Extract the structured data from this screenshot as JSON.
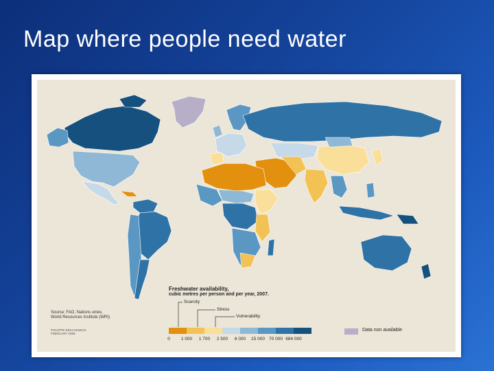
{
  "slide": {
    "title": "Map where people need water"
  },
  "legend": {
    "title": "Freshwater availability,",
    "subtitle": "cubic metres per person and per year, 2007.",
    "categories": {
      "scarcity": "Scarcity",
      "stress": "Stress",
      "vulnerability": "Vulnerability"
    },
    "ticks": [
      "0",
      "1 000",
      "1 700",
      "2 500",
      "6 000",
      "15 000",
      "70 000",
      "684 000"
    ],
    "colors": [
      "#e2900e",
      "#f2c255",
      "#fadf9a",
      "#c5d9e8",
      "#8fb8d6",
      "#5a97c2",
      "#2f72a6",
      "#15507e"
    ],
    "no_data": {
      "label": "Data non available",
      "color": "#b7aec8"
    }
  },
  "source": {
    "line1": "Source: FAO, Nations unies,",
    "line2": "World Resources Institute (WRI)."
  },
  "credit": {
    "line1": "PHILIPPE REKACEWICZ",
    "line2": "FEBRUARY 2006"
  }
}
